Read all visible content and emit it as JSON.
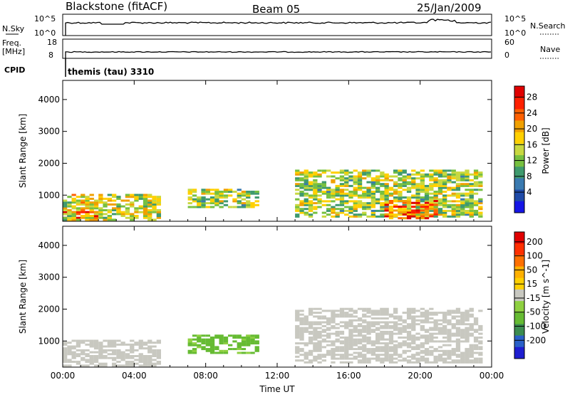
{
  "header": {
    "station": "Blackstone (fitACF)",
    "beam": "Beam 05",
    "date": "25/Jan/2009"
  },
  "panels": {
    "nsky": {
      "left_label": "N.Sky",
      "left_ticks": [
        "10^5",
        "10^0"
      ],
      "right_label": "N.Search",
      "right_ticks": [
        "10^5",
        "10^0"
      ]
    },
    "freq": {
      "left_label_1": "Freq.",
      "left_label_2": "[MHz]",
      "left_ticks": [
        "18",
        "8"
      ],
      "right_label": "Nave",
      "right_ticks": [
        "60",
        "0"
      ]
    },
    "cpid": {
      "label": "CPID",
      "mode": "themis (tau) 3310"
    }
  },
  "chart_data": [
    {
      "type": "heatmap",
      "title": "",
      "variable": "Power",
      "xlabel": "",
      "ylabel": "Slant Range [km]",
      "x_ticks": [
        "00:00",
        "04:00",
        "08:00",
        "12:00",
        "16:00",
        "20:00",
        "00:00"
      ],
      "y_ticks": [
        "1000",
        "2000",
        "3000",
        "4000"
      ],
      "ylim": [
        180,
        4600
      ],
      "colorbar": {
        "label": "Power [dB]",
        "ticks": [
          "4",
          "8",
          "12",
          "16",
          "20",
          "24",
          "28"
        ],
        "range": [
          0,
          30
        ],
        "colors": [
          "#1515e6",
          "#1f4aa8",
          "#3a7ab0",
          "#3f9a6e",
          "#77c040",
          "#c8d840",
          "#ffd000",
          "#f0a000",
          "#ff6000",
          "#ff2000",
          "#e00000"
        ]
      },
      "regions": [
        {
          "t0": 0.0,
          "t1": 2.0,
          "r0": 200,
          "r1": 500,
          "dominant": 28
        },
        {
          "t0": 0.0,
          "t1": 5.5,
          "r0": 200,
          "r1": 1000,
          "dominant": 16
        },
        {
          "t0": 7.0,
          "t1": 11.0,
          "r0": 600,
          "r1": 1200,
          "dominant": 14
        },
        {
          "t0": 13.0,
          "t1": 23.5,
          "r0": 300,
          "r1": 1800,
          "dominant": 14
        },
        {
          "t0": 18.0,
          "t1": 21.0,
          "r0": 250,
          "r1": 800,
          "dominant": 24
        }
      ]
    },
    {
      "type": "heatmap",
      "title": "",
      "variable": "Velocity",
      "xlabel": "Time UT",
      "ylabel": "Slant Range [km]",
      "x_ticks": [
        "00:00",
        "04:00",
        "08:00",
        "12:00",
        "16:00",
        "20:00",
        "00:00"
      ],
      "y_ticks": [
        "1000",
        "2000",
        "3000",
        "4000"
      ],
      "ylim": [
        180,
        4600
      ],
      "colorbar": {
        "label": "Velocity [m s^-1]",
        "ticks": [
          "200",
          "100",
          "50",
          "15",
          "-15",
          "-50",
          "-100",
          "-200"
        ],
        "range": [
          -250,
          250
        ],
        "colors": [
          "#1e1ed0",
          "#2a60c8",
          "#3c8c50",
          "#66bb33",
          "#8ed040",
          "#c8c8c0",
          "#ffd000",
          "#ffb000",
          "#ff7000",
          "#ff3000",
          "#e00000"
        ]
      },
      "regions": [
        {
          "t0": 0.0,
          "t1": 5.5,
          "r0": 200,
          "r1": 1000,
          "dominant": 0
        },
        {
          "t0": 7.0,
          "t1": 11.0,
          "r0": 600,
          "r1": 1200,
          "dominant": -80
        },
        {
          "t0": 13.0,
          "t1": 23.5,
          "r0": 300,
          "r1": 2000,
          "dominant": 0
        }
      ]
    }
  ]
}
